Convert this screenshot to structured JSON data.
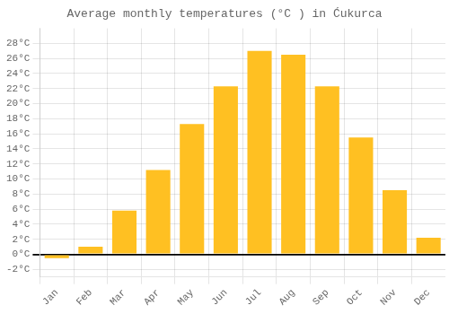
{
  "chart_data": {
    "type": "bar",
    "title": "Average monthly temperatures (°C ) in Ćukurca",
    "categories": [
      "Jan",
      "Feb",
      "Mar",
      "Apr",
      "May",
      "Jun",
      "Jul",
      "Aug",
      "Sep",
      "Oct",
      "Nov",
      "Dec"
    ],
    "values": [
      -0.5,
      1.0,
      5.8,
      11.2,
      17.3,
      22.3,
      27.0,
      26.5,
      22.3,
      15.5,
      8.5,
      2.2
    ],
    "color": "#FFC022",
    "ylim": [
      -3,
      30
    ],
    "yticks": [
      {
        "value": -2,
        "label": "-2°C"
      },
      {
        "value": 0,
        "label": "0°C"
      },
      {
        "value": 2,
        "label": "2°C"
      },
      {
        "value": 4,
        "label": "4°C"
      },
      {
        "value": 6,
        "label": "6°C"
      },
      {
        "value": 8,
        "label": "8°C"
      },
      {
        "value": 10,
        "label": "10°C"
      },
      {
        "value": 12,
        "label": "12°C"
      },
      {
        "value": 14,
        "label": "14°C"
      },
      {
        "value": 16,
        "label": "16°C"
      },
      {
        "value": 18,
        "label": "18°C"
      },
      {
        "value": 20,
        "label": "20°C"
      },
      {
        "value": 22,
        "label": "22°C"
      },
      {
        "value": 24,
        "label": "24°C"
      },
      {
        "value": 26,
        "label": "26°C"
      },
      {
        "value": 28,
        "label": "28°C"
      }
    ],
    "grid": true
  }
}
